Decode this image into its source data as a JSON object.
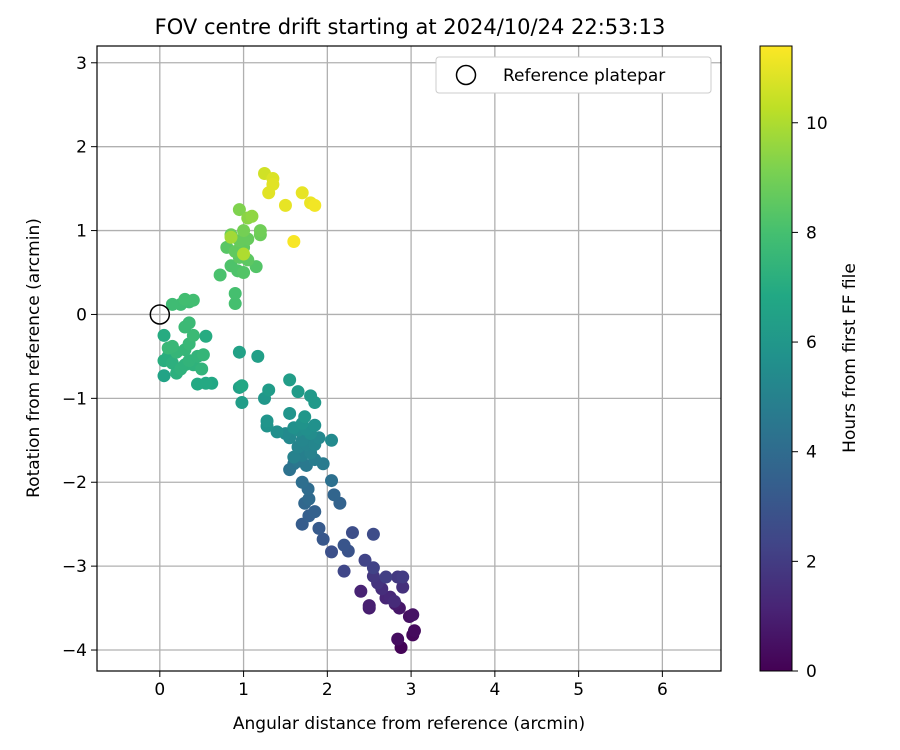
{
  "chart_data": {
    "type": "scatter",
    "title": "FOV centre drift starting at 2024/10/24 22:53:13",
    "xlabel": "Angular distance from reference (arcmin)",
    "ylabel": "Rotation from reference (arcmin)",
    "xlim": [
      -0.75,
      6.7
    ],
    "ylim": [
      -4.25,
      3.2
    ],
    "xticks": [
      0,
      1,
      2,
      3,
      4,
      5,
      6
    ],
    "yticks": [
      -4,
      -3,
      -2,
      -1,
      0,
      1,
      2,
      3
    ],
    "xtick_labels": [
      "0",
      "1",
      "2",
      "3",
      "4",
      "5",
      "6"
    ],
    "ytick_labels": [
      "−4",
      "−3",
      "−2",
      "−1",
      "0",
      "1",
      "2",
      "3"
    ],
    "grid": true,
    "legend": {
      "position": "top-right",
      "entries": [
        {
          "label": "Reference platepar",
          "marker": "open-circle",
          "x": 0,
          "y": 0
        }
      ]
    },
    "colorbar": {
      "label": "Hours from first FF file",
      "colormap": "viridis",
      "range": [
        0,
        11.4
      ],
      "ticks": [
        0,
        2,
        4,
        6,
        8,
        10
      ],
      "tick_labels": [
        "0",
        "2",
        "4",
        "6",
        "8",
        "10"
      ]
    },
    "series": [
      {
        "color_by": "hours",
        "points": [
          {
            "x": 2.88,
            "y": -3.97,
            "hours": 0.1
          },
          {
            "x": 3.02,
            "y": -3.82,
            "hours": 0.2
          },
          {
            "x": 3.04,
            "y": -3.77,
            "hours": 0.3
          },
          {
            "x": 2.84,
            "y": -3.87,
            "hours": 0.4
          },
          {
            "x": 2.98,
            "y": -3.6,
            "hours": 0.5
          },
          {
            "x": 3.02,
            "y": -3.58,
            "hours": 0.6
          },
          {
            "x": 2.86,
            "y": -3.5,
            "hours": 0.7
          },
          {
            "x": 2.81,
            "y": -3.45,
            "hours": 0.8
          },
          {
            "x": 2.5,
            "y": -3.5,
            "hours": 0.9
          },
          {
            "x": 2.5,
            "y": -3.47,
            "hours": 1.0
          },
          {
            "x": 2.4,
            "y": -3.3,
            "hours": 1.1
          },
          {
            "x": 2.7,
            "y": -3.38,
            "hours": 1.2
          },
          {
            "x": 2.75,
            "y": -3.37,
            "hours": 1.3
          },
          {
            "x": 2.8,
            "y": -3.42,
            "hours": 1.4
          },
          {
            "x": 2.65,
            "y": -3.27,
            "hours": 1.5
          },
          {
            "x": 2.9,
            "y": -3.25,
            "hours": 1.6
          },
          {
            "x": 2.6,
            "y": -3.2,
            "hours": 1.7
          },
          {
            "x": 2.55,
            "y": -3.12,
            "hours": 1.8
          },
          {
            "x": 2.84,
            "y": -3.13,
            "hours": 1.9
          },
          {
            "x": 2.9,
            "y": -3.13,
            "hours": 2.0
          },
          {
            "x": 2.7,
            "y": -3.13,
            "hours": 2.1
          },
          {
            "x": 2.55,
            "y": -3.02,
            "hours": 2.2
          },
          {
            "x": 2.45,
            "y": -2.93,
            "hours": 2.3
          },
          {
            "x": 2.2,
            "y": -3.06,
            "hours": 2.4
          },
          {
            "x": 2.55,
            "y": -2.62,
            "hours": 2.6
          },
          {
            "x": 2.3,
            "y": -2.6,
            "hours": 2.7
          },
          {
            "x": 2.05,
            "y": -2.83,
            "hours": 2.8
          },
          {
            "x": 2.25,
            "y": -2.82,
            "hours": 2.9
          },
          {
            "x": 2.2,
            "y": -2.75,
            "hours": 3.0
          },
          {
            "x": 1.95,
            "y": -2.68,
            "hours": 3.1
          },
          {
            "x": 1.9,
            "y": -2.55,
            "hours": 3.2
          },
          {
            "x": 1.7,
            "y": -2.5,
            "hours": 3.3
          },
          {
            "x": 1.78,
            "y": -2.4,
            "hours": 3.4
          },
          {
            "x": 1.85,
            "y": -2.35,
            "hours": 3.5
          },
          {
            "x": 2.15,
            "y": -2.25,
            "hours": 3.6
          },
          {
            "x": 2.08,
            "y": -2.15,
            "hours": 3.7
          },
          {
            "x": 1.73,
            "y": -2.25,
            "hours": 3.8
          },
          {
            "x": 1.78,
            "y": -2.2,
            "hours": 3.9
          },
          {
            "x": 1.77,
            "y": -2.08,
            "hours": 4.0
          },
          {
            "x": 1.7,
            "y": -2.0,
            "hours": 4.1
          },
          {
            "x": 2.05,
            "y": -1.98,
            "hours": 4.2
          },
          {
            "x": 1.55,
            "y": -1.85,
            "hours": 4.3
          },
          {
            "x": 1.6,
            "y": -1.78,
            "hours": 4.4
          },
          {
            "x": 1.65,
            "y": -1.75,
            "hours": 4.5
          },
          {
            "x": 1.75,
            "y": -1.8,
            "hours": 4.6
          },
          {
            "x": 1.95,
            "y": -1.78,
            "hours": 4.7
          },
          {
            "x": 1.85,
            "y": -1.73,
            "hours": 4.8
          },
          {
            "x": 1.7,
            "y": -1.68,
            "hours": 4.9
          },
          {
            "x": 1.6,
            "y": -1.7,
            "hours": 5.0
          },
          {
            "x": 1.8,
            "y": -1.65,
            "hours": 5.0
          },
          {
            "x": 1.65,
            "y": -1.58,
            "hours": 5.1
          },
          {
            "x": 1.75,
            "y": -1.55,
            "hours": 5.1
          },
          {
            "x": 1.85,
            "y": -1.55,
            "hours": 5.2
          },
          {
            "x": 1.7,
            "y": -1.5,
            "hours": 5.2
          },
          {
            "x": 1.55,
            "y": -1.47,
            "hours": 5.3
          },
          {
            "x": 1.9,
            "y": -1.47,
            "hours": 5.3
          },
          {
            "x": 2.05,
            "y": -1.5,
            "hours": 5.4
          },
          {
            "x": 1.5,
            "y": -1.42,
            "hours": 5.4
          },
          {
            "x": 1.8,
            "y": -1.42,
            "hours": 5.5
          },
          {
            "x": 1.65,
            "y": -1.38,
            "hours": 5.5
          },
          {
            "x": 1.75,
            "y": -1.37,
            "hours": 5.6
          },
          {
            "x": 1.4,
            "y": -1.4,
            "hours": 5.6
          },
          {
            "x": 1.6,
            "y": -1.35,
            "hours": 5.7
          },
          {
            "x": 1.85,
            "y": -1.32,
            "hours": 5.7
          },
          {
            "x": 1.7,
            "y": -1.3,
            "hours": 5.8
          },
          {
            "x": 1.28,
            "y": -1.33,
            "hours": 5.8
          },
          {
            "x": 1.28,
            "y": -1.27,
            "hours": 5.9
          },
          {
            "x": 1.55,
            "y": -1.18,
            "hours": 5.9
          },
          {
            "x": 1.73,
            "y": -1.22,
            "hours": 6.0
          },
          {
            "x": 1.25,
            "y": -1.0,
            "hours": 6.0
          },
          {
            "x": 1.85,
            "y": -1.05,
            "hours": 6.1
          },
          {
            "x": 1.8,
            "y": -0.97,
            "hours": 6.1
          },
          {
            "x": 1.65,
            "y": -0.92,
            "hours": 6.2
          },
          {
            "x": 1.3,
            "y": -0.9,
            "hours": 6.2
          },
          {
            "x": 1.55,
            "y": -0.78,
            "hours": 6.3
          },
          {
            "x": 0.98,
            "y": -1.05,
            "hours": 6.3
          },
          {
            "x": 0.95,
            "y": -0.87,
            "hours": 6.4
          },
          {
            "x": 1.17,
            "y": -0.5,
            "hours": 6.4
          },
          {
            "x": 0.95,
            "y": -0.45,
            "hours": 6.5
          },
          {
            "x": 0.05,
            "y": -0.73,
            "hours": 6.6
          },
          {
            "x": 0.98,
            "y": -0.85,
            "hours": 6.8
          },
          {
            "x": 0.62,
            "y": -0.82,
            "hours": 6.8
          },
          {
            "x": 0.55,
            "y": -0.82,
            "hours": 6.9
          },
          {
            "x": 0.45,
            "y": -0.83,
            "hours": 6.9
          },
          {
            "x": 0.55,
            "y": -0.26,
            "hours": 7.0
          },
          {
            "x": 0.05,
            "y": -0.25,
            "hours": 7.0
          },
          {
            "x": 0.1,
            "y": -0.5,
            "hours": 7.1
          },
          {
            "x": 0.05,
            "y": -0.55,
            "hours": 7.1
          },
          {
            "x": 0.15,
            "y": -0.58,
            "hours": 7.2
          },
          {
            "x": 0.2,
            "y": -0.7,
            "hours": 7.2
          },
          {
            "x": 0.25,
            "y": -0.65,
            "hours": 7.3
          },
          {
            "x": 0.3,
            "y": -0.6,
            "hours": 7.3
          },
          {
            "x": 0.4,
            "y": -0.6,
            "hours": 7.3
          },
          {
            "x": 0.5,
            "y": -0.65,
            "hours": 7.4
          },
          {
            "x": 0.35,
            "y": -0.55,
            "hours": 7.4
          },
          {
            "x": 0.45,
            "y": -0.5,
            "hours": 7.4
          },
          {
            "x": 0.52,
            "y": -0.48,
            "hours": 7.5
          },
          {
            "x": 0.2,
            "y": -0.45,
            "hours": 7.5
          },
          {
            "x": 0.3,
            "y": -0.42,
            "hours": 7.5
          },
          {
            "x": 0.1,
            "y": -0.4,
            "hours": 7.6
          },
          {
            "x": 0.15,
            "y": -0.38,
            "hours": 7.6
          },
          {
            "x": 0.35,
            "y": -0.35,
            "hours": 7.6
          },
          {
            "x": 0.4,
            "y": -0.25,
            "hours": 7.7
          },
          {
            "x": 0.3,
            "y": -0.15,
            "hours": 7.7
          },
          {
            "x": 0.35,
            "y": -0.1,
            "hours": 7.7
          },
          {
            "x": 0.25,
            "y": 0.12,
            "hours": 7.8
          },
          {
            "x": 0.15,
            "y": 0.12,
            "hours": 7.8
          },
          {
            "x": 0.35,
            "y": 0.15,
            "hours": 7.8
          },
          {
            "x": 0.3,
            "y": 0.18,
            "hours": 7.9
          },
          {
            "x": 0.4,
            "y": 0.17,
            "hours": 7.9
          },
          {
            "x": 0.9,
            "y": 0.13,
            "hours": 8.0
          },
          {
            "x": 0.9,
            "y": 0.25,
            "hours": 8.0
          },
          {
            "x": 0.72,
            "y": 0.47,
            "hours": 8.1
          },
          {
            "x": 0.85,
            "y": 0.58,
            "hours": 8.2
          },
          {
            "x": 0.93,
            "y": 0.52,
            "hours": 8.2
          },
          {
            "x": 1.0,
            "y": 0.5,
            "hours": 8.3
          },
          {
            "x": 1.15,
            "y": 0.57,
            "hours": 8.3
          },
          {
            "x": 0.8,
            "y": 0.8,
            "hours": 8.4
          },
          {
            "x": 0.95,
            "y": 0.68,
            "hours": 8.5
          },
          {
            "x": 1.05,
            "y": 0.65,
            "hours": 8.5
          },
          {
            "x": 0.9,
            "y": 0.75,
            "hours": 8.6
          },
          {
            "x": 1.0,
            "y": 0.8,
            "hours": 8.6
          },
          {
            "x": 1.05,
            "y": 0.9,
            "hours": 8.7
          },
          {
            "x": 0.95,
            "y": 0.88,
            "hours": 8.7
          },
          {
            "x": 0.85,
            "y": 0.95,
            "hours": 8.8
          },
          {
            "x": 1.2,
            "y": 0.95,
            "hours": 8.8
          },
          {
            "x": 1.2,
            "y": 1.0,
            "hours": 8.9
          },
          {
            "x": 1.0,
            "y": 1.0,
            "hours": 9.0
          },
          {
            "x": 0.95,
            "y": 1.25,
            "hours": 9.2
          },
          {
            "x": 1.05,
            "y": 1.15,
            "hours": 9.4
          },
          {
            "x": 1.1,
            "y": 1.17,
            "hours": 9.5
          },
          {
            "x": 0.85,
            "y": 0.92,
            "hours": 9.8
          },
          {
            "x": 1.0,
            "y": 0.72,
            "hours": 10.0
          },
          {
            "x": 1.25,
            "y": 1.68,
            "hours": 10.6
          },
          {
            "x": 1.35,
            "y": 1.62,
            "hours": 10.8
          },
          {
            "x": 1.35,
            "y": 1.55,
            "hours": 10.9
          },
          {
            "x": 1.3,
            "y": 1.45,
            "hours": 10.9
          },
          {
            "x": 1.7,
            "y": 1.45,
            "hours": 11.0
          },
          {
            "x": 1.5,
            "y": 1.3,
            "hours": 11.0
          },
          {
            "x": 1.8,
            "y": 1.33,
            "hours": 11.1
          },
          {
            "x": 1.85,
            "y": 1.3,
            "hours": 11.2
          },
          {
            "x": 1.6,
            "y": 0.87,
            "hours": 11.3
          }
        ]
      }
    ]
  }
}
